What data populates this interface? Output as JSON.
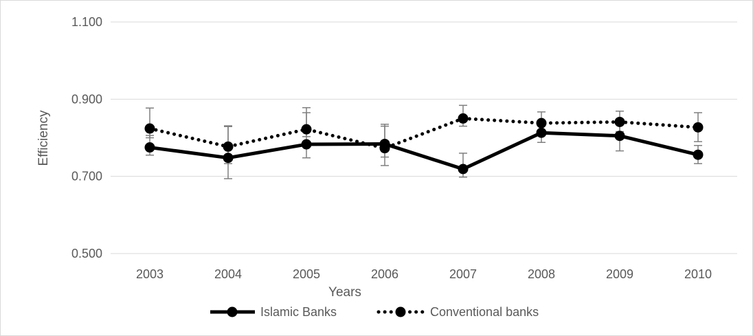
{
  "chart_data": {
    "type": "line",
    "title": "",
    "xlabel": "Years",
    "ylabel": "Efficiency",
    "categories": [
      "2003",
      "2004",
      "2005",
      "2006",
      "2007",
      "2008",
      "2009",
      "2010"
    ],
    "ylim": [
      0.5,
      1.1
    ],
    "yticks": [
      "0.500",
      "0.700",
      "0.900",
      "1.100"
    ],
    "yticks_values": [
      0.5,
      0.7,
      0.9,
      1.1
    ],
    "grid": "horizontal",
    "legend": "bottom",
    "series": [
      {
        "name": "Islamic Banks",
        "line_style": "solid",
        "color": "#000000",
        "values": [
          0.775,
          0.748,
          0.783,
          0.784,
          0.719,
          0.813,
          0.805,
          0.756
        ],
        "error_low": [
          0.755,
          0.694,
          0.748,
          0.728,
          0.698,
          0.788,
          0.766,
          0.733
        ],
        "error_high": [
          0.806,
          0.829,
          0.878,
          0.835,
          0.76,
          0.836,
          0.843,
          0.78
        ]
      },
      {
        "name": "Conventional banks",
        "line_style": "dotted",
        "color": "#000000",
        "values": [
          0.824,
          0.777,
          0.822,
          0.773,
          0.85,
          0.838,
          0.841,
          0.827
        ],
        "error_low": [
          0.8,
          0.733,
          0.803,
          0.75,
          0.83,
          0.81,
          0.816,
          0.79
        ],
        "error_high": [
          0.877,
          0.831,
          0.865,
          0.83,
          0.884,
          0.867,
          0.869,
          0.865
        ]
      }
    ]
  }
}
